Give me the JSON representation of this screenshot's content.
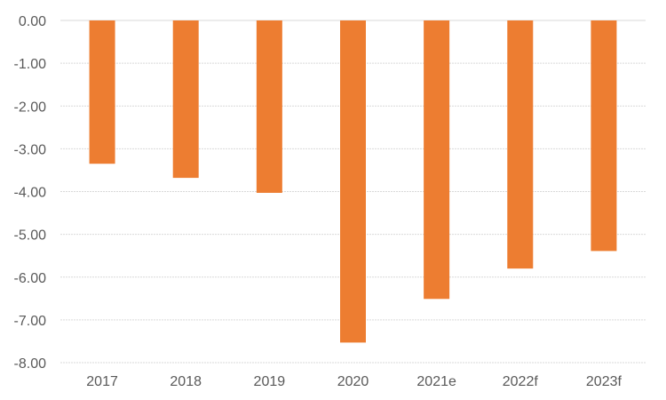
{
  "chart_data": {
    "type": "bar",
    "categories": [
      "2017",
      "2018",
      "2019",
      "2020",
      "2021e",
      "2022f",
      "2023f"
    ],
    "series": [
      {
        "values": [
          -3.35,
          -3.68,
          -4.03,
          -7.53,
          -6.51,
          -5.8,
          -5.39
        ],
        "color": "#ed7d31"
      }
    ],
    "y_ticks": [
      "0.00",
      "-1.00",
      "-2.00",
      "-3.00",
      "-4.00",
      "-5.00",
      "-6.00",
      "-7.00",
      "-8.00"
    ],
    "ylim": [
      -8,
      0
    ],
    "grid": true,
    "legend": "none",
    "title": "",
    "xlabel": "",
    "ylabel": ""
  }
}
